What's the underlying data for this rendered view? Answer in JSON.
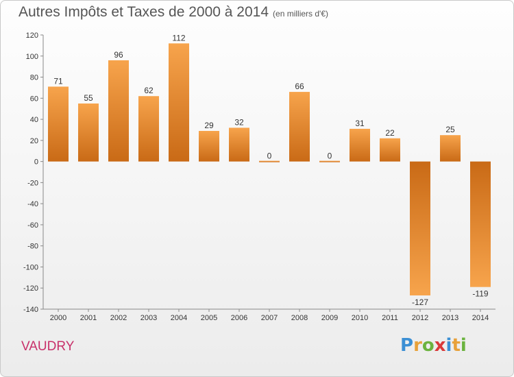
{
  "title": "Autres Impôts et Taxes de 2000 à 2014",
  "title_unit": "(en milliers d'€)",
  "place_name": "VAUDRY",
  "logo_letters": [
    "P",
    "r",
    "o",
    "x",
    "i",
    "t",
    "i"
  ],
  "colors": {
    "bar_light": "#f7a44c",
    "bar_dark": "#c96a16",
    "title": "#555555",
    "place": "#c8306a"
  },
  "chart_data": {
    "type": "bar",
    "title": "Autres Impôts et Taxes de 2000 à 2014",
    "xlabel": "",
    "ylabel": "",
    "categories": [
      "2000",
      "2001",
      "2002",
      "2003",
      "2004",
      "2005",
      "2006",
      "2007",
      "2008",
      "2009",
      "2010",
      "2011",
      "2012",
      "2013",
      "2014"
    ],
    "values": [
      71,
      55,
      96,
      62,
      112,
      29,
      32,
      0,
      66,
      0,
      31,
      22,
      -127,
      25,
      -119
    ],
    "ylim": [
      -140,
      120
    ],
    "yticks": [
      -140,
      -120,
      -100,
      -80,
      -60,
      -40,
      -20,
      0,
      20,
      40,
      60,
      80,
      100,
      120
    ],
    "grid": false,
    "legend": "none"
  }
}
